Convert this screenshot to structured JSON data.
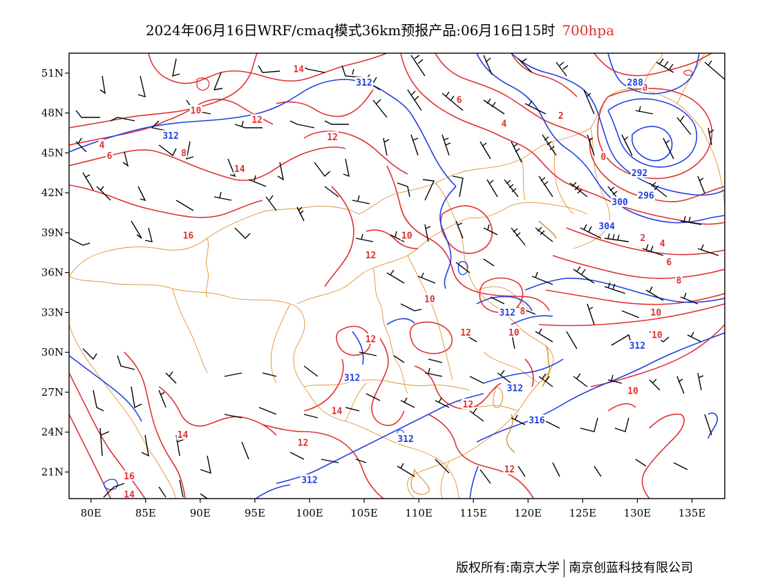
{
  "title": {
    "main": "2024年06月16日WRF/cmaq模式36km预报产品:06月16日15时",
    "level": "700hpa"
  },
  "footer": {
    "left": "版权所有:南京大学",
    "right": "南京创蓝科技有限公司"
  },
  "colors": {
    "temperature": "#e03030",
    "height": "#2040e0",
    "border": "#e09030",
    "wind": "#000000"
  },
  "map": {
    "lon_range": [
      78,
      138
    ],
    "lat_range": [
      19,
      52.5
    ],
    "x_ticks": [
      {
        "lon": 80,
        "label": "80E"
      },
      {
        "lon": 85,
        "label": "85E"
      },
      {
        "lon": 90,
        "label": "90E"
      },
      {
        "lon": 95,
        "label": "95E"
      },
      {
        "lon": 100,
        "label": "100E"
      },
      {
        "lon": 105,
        "label": "105E"
      },
      {
        "lon": 110,
        "label": "110E"
      },
      {
        "lon": 115,
        "label": "115E"
      },
      {
        "lon": 120,
        "label": "120E"
      },
      {
        "lon": 125,
        "label": "125E"
      },
      {
        "lon": 130,
        "label": "130E"
      },
      {
        "lon": 135,
        "label": "135E"
      }
    ],
    "y_ticks": [
      {
        "lat": 51,
        "label": "51N"
      },
      {
        "lat": 48,
        "label": "48N"
      },
      {
        "lat": 45,
        "label": "45N"
      },
      {
        "lat": 42,
        "label": "42N"
      },
      {
        "lat": 39,
        "label": "39N"
      },
      {
        "lat": 36,
        "label": "36N"
      },
      {
        "lat": 33,
        "label": "33N"
      },
      {
        "lat": 30,
        "label": "30N"
      },
      {
        "lat": 27,
        "label": "27N"
      },
      {
        "lat": 24,
        "label": "24N"
      },
      {
        "lat": 21,
        "label": "21N"
      }
    ],
    "temperature_labels": [
      {
        "lon": 89.6,
        "lat": 48.2,
        "text": "10"
      },
      {
        "lon": 99.0,
        "lat": 51.3,
        "text": "14"
      },
      {
        "lon": 95.2,
        "lat": 47.5,
        "text": "12"
      },
      {
        "lon": 102.1,
        "lat": 46.2,
        "text": "12"
      },
      {
        "lon": 88.5,
        "lat": 45.0,
        "text": "8"
      },
      {
        "lon": 81.0,
        "lat": 45.6,
        "text": "4"
      },
      {
        "lon": 81.7,
        "lat": 44.8,
        "text": "6"
      },
      {
        "lon": 93.6,
        "lat": 43.8,
        "text": "14"
      },
      {
        "lon": 88.9,
        "lat": 38.8,
        "text": "16"
      },
      {
        "lon": 113.7,
        "lat": 49.0,
        "text": "6"
      },
      {
        "lon": 117.8,
        "lat": 47.2,
        "text": "4"
      },
      {
        "lon": 123.0,
        "lat": 47.8,
        "text": "2"
      },
      {
        "lon": 130.7,
        "lat": 49.9,
        "text": "0"
      },
      {
        "lon": 126.9,
        "lat": 44.7,
        "text": "0"
      },
      {
        "lon": 130.5,
        "lat": 38.6,
        "text": "2"
      },
      {
        "lon": 132.3,
        "lat": 38.2,
        "text": "4"
      },
      {
        "lon": 132.9,
        "lat": 36.8,
        "text": "6"
      },
      {
        "lon": 133.8,
        "lat": 35.4,
        "text": "8"
      },
      {
        "lon": 131.7,
        "lat": 33.0,
        "text": "10"
      },
      {
        "lon": 131.8,
        "lat": 31.3,
        "text": "10"
      },
      {
        "lon": 108.9,
        "lat": 38.8,
        "text": "10"
      },
      {
        "lon": 111.0,
        "lat": 34.0,
        "text": "10"
      },
      {
        "lon": 105.6,
        "lat": 37.3,
        "text": "12"
      },
      {
        "lon": 105.6,
        "lat": 31.0,
        "text": "12"
      },
      {
        "lon": 114.3,
        "lat": 31.5,
        "text": "12"
      },
      {
        "lon": 118.7,
        "lat": 31.5,
        "text": "10"
      },
      {
        "lon": 119.5,
        "lat": 33.1,
        "text": "8"
      },
      {
        "lon": 114.5,
        "lat": 26.1,
        "text": "12"
      },
      {
        "lon": 129.6,
        "lat": 27.1,
        "text": "10"
      },
      {
        "lon": 102.5,
        "lat": 25.6,
        "text": "14"
      },
      {
        "lon": 99.4,
        "lat": 23.2,
        "text": "12"
      },
      {
        "lon": 118.3,
        "lat": 21.2,
        "text": "12"
      },
      {
        "lon": 88.4,
        "lat": 23.8,
        "text": "14"
      },
      {
        "lon": 83.5,
        "lat": 20.7,
        "text": "16"
      },
      {
        "lon": 83.5,
        "lat": 19.3,
        "text": "14"
      }
    ],
    "height_labels": [
      {
        "lon": 105.0,
        "lat": 50.3,
        "text": "312"
      },
      {
        "lon": 87.3,
        "lat": 46.3,
        "text": "312"
      },
      {
        "lon": 129.8,
        "lat": 50.3,
        "text": "288"
      },
      {
        "lon": 130.2,
        "lat": 43.5,
        "text": "292"
      },
      {
        "lon": 130.8,
        "lat": 41.8,
        "text": "296"
      },
      {
        "lon": 128.4,
        "lat": 41.3,
        "text": "300"
      },
      {
        "lon": 127.2,
        "lat": 39.5,
        "text": "304"
      },
      {
        "lon": 118.1,
        "lat": 33.0,
        "text": "312"
      },
      {
        "lon": 130.0,
        "lat": 30.5,
        "text": "312"
      },
      {
        "lon": 118.8,
        "lat": 27.3,
        "text": "312"
      },
      {
        "lon": 120.8,
        "lat": 24.9,
        "text": "316"
      },
      {
        "lon": 103.9,
        "lat": 28.1,
        "text": "312"
      },
      {
        "lon": 108.8,
        "lat": 23.5,
        "text": "312"
      },
      {
        "lon": 100.0,
        "lat": 20.4,
        "text": "312"
      }
    ]
  }
}
